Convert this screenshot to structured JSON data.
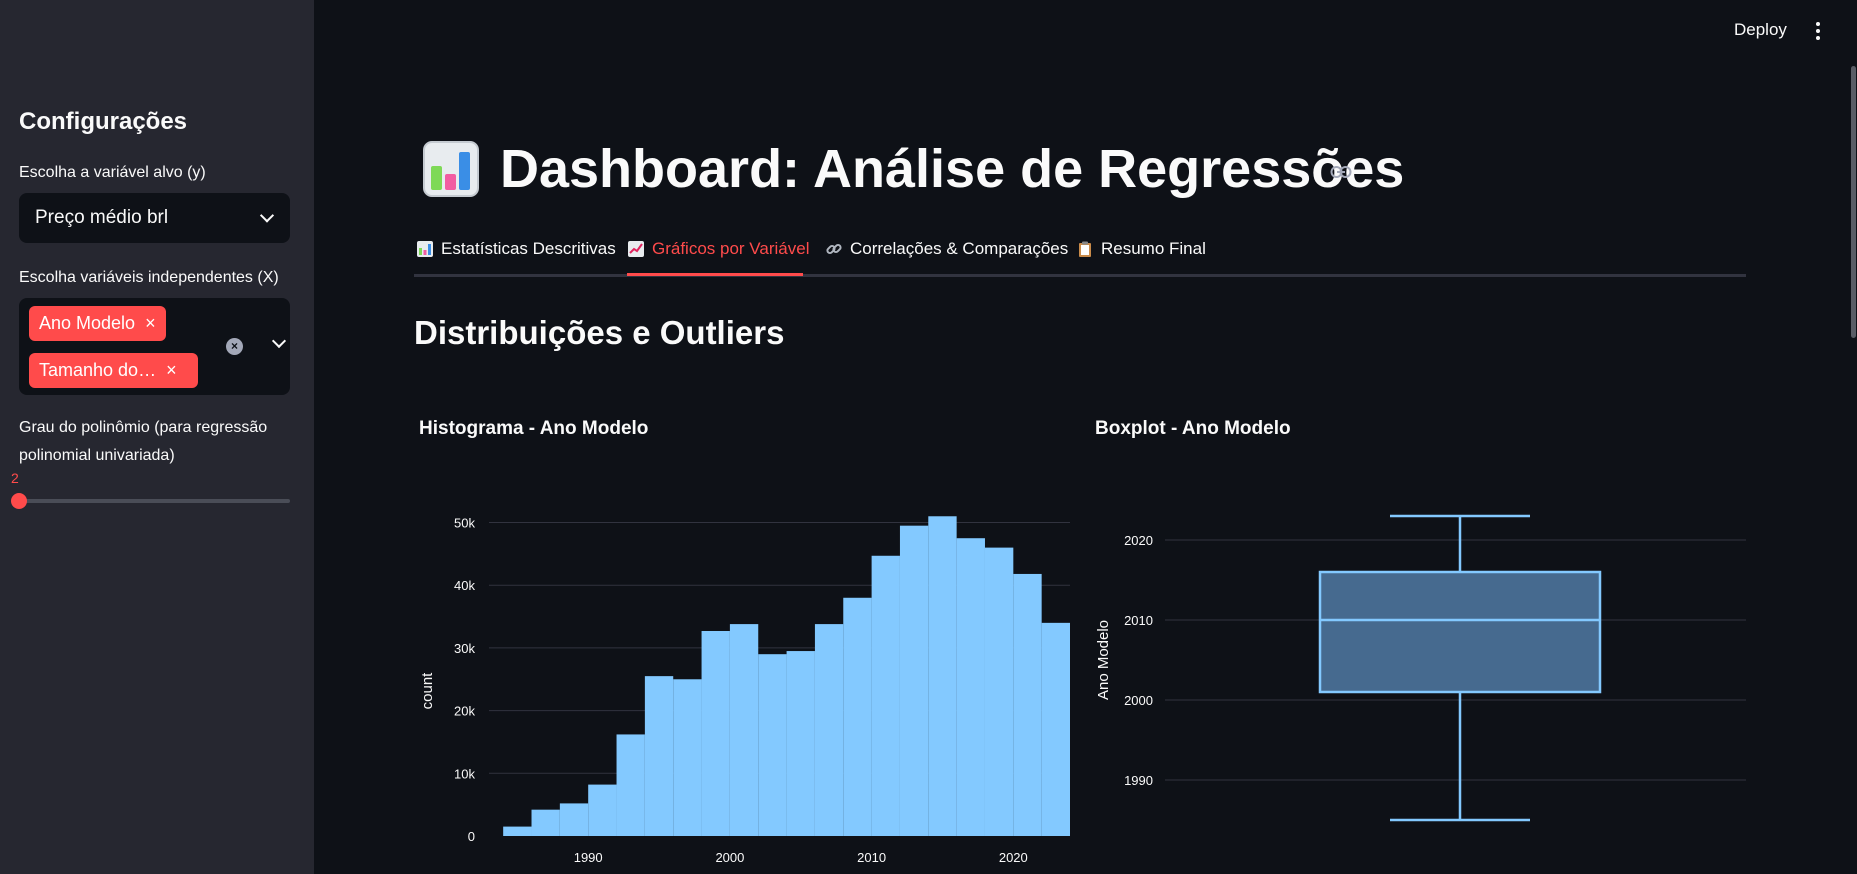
{
  "header": {
    "deploy_label": "Deploy"
  },
  "sidebar": {
    "title": "Configurações",
    "target_label": "Escolha a variável alvo (y)",
    "target_value": "Preço médio brl",
    "features_label": "Escolha variáveis independentes (X)",
    "features_tags": [
      "Ano Modelo",
      "Tamanho do…"
    ],
    "degree_label_line1": "Grau do polinômio (para regressão",
    "degree_label_line2": "polinomial univariada)",
    "degree_value": "2"
  },
  "page": {
    "title": "Dashboard: Análise de Regressões",
    "tabs": [
      "Estatísticas Descritivas",
      "Gráficos por Variável",
      "Correlações & Comparações",
      "Resumo Final"
    ],
    "active_tab": 1,
    "section_title": "Distribuições e Outliers"
  },
  "colors": {
    "accent": "#ff4b4b",
    "bar": "#83c9ff",
    "box_fill": "#466a8f",
    "box_line": "#83c9ff"
  },
  "chart_data": [
    {
      "type": "bar",
      "title": "Histograma - Ano Modelo",
      "xlabel": "",
      "ylabel": "count",
      "x_ticks": [
        "1990",
        "2000",
        "2010",
        "2020"
      ],
      "y_ticks": [
        "0",
        "10k",
        "20k",
        "30k",
        "40k",
        "50k"
      ],
      "xlim": [
        1983,
        2024
      ],
      "ylim": [
        0,
        52000
      ],
      "bin_width": 2,
      "bin_starts": [
        1984,
        1986,
        1988,
        1990,
        1992,
        1994,
        1996,
        1998,
        2000,
        2002,
        2004,
        2006,
        2008,
        2010,
        2012,
        2014,
        2016,
        2018,
        2020,
        2022
      ],
      "values": [
        1500,
        4200,
        5200,
        8200,
        16200,
        25500,
        25000,
        32700,
        33800,
        29000,
        29500,
        33800,
        38000,
        44700,
        49500,
        51000,
        47500,
        46000,
        41800,
        34000
      ]
    },
    {
      "type": "box",
      "title": "Boxplot - Ano Modelo",
      "ylabel": "Ano Modelo",
      "y_ticks": [
        "1990",
        "2000",
        "2010",
        "2020"
      ],
      "ylim": [
        1985,
        2024
      ],
      "min": 1985,
      "q1": 2001,
      "median": 2010,
      "q3": 2016,
      "max": 2023
    }
  ]
}
